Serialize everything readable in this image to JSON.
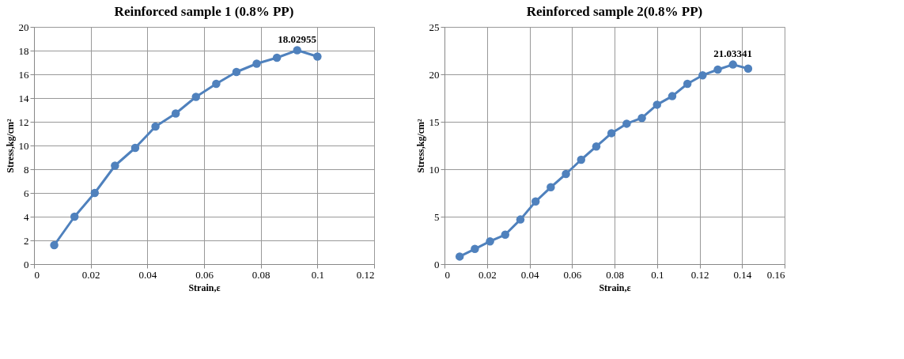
{
  "chart_data": [
    {
      "type": "line",
      "title": "Reinforced sample 1 (0.8% PP)",
      "xlabel": "Strain,ε",
      "ylabel": "Stress,kg/cm²",
      "x": [
        0.00714,
        0.01429,
        0.02143,
        0.02857,
        0.03571,
        0.04286,
        0.05,
        0.05714,
        0.06429,
        0.07143,
        0.07857,
        0.08571,
        0.09286,
        0.1
      ],
      "series": [
        {
          "color": "#4f81bd",
          "values": [
            1.6,
            4.0,
            6.0,
            8.3,
            9.8,
            11.6,
            12.7,
            14.1,
            15.2,
            16.2,
            16.9,
            17.4,
            18.02955,
            17.5
          ]
        }
      ],
      "xlim": [
        0,
        0.12
      ],
      "xticks": [
        0,
        0.02,
        0.04,
        0.06,
        0.08,
        0.1,
        0.12
      ],
      "ylim": [
        0,
        20
      ],
      "yticks": [
        0,
        2,
        4,
        6,
        8,
        10,
        12,
        14,
        16,
        18,
        20
      ],
      "annotations": [
        {
          "text": "18.02955",
          "x": 0.09286,
          "y": 18.02955
        }
      ],
      "grid": true,
      "marker": "circle",
      "line_style": "solid"
    },
    {
      "type": "line",
      "title": "Reinforced sample 2(0.8% PP)",
      "xlabel": "Strain,ε",
      "ylabel": "Stress,kg/cm²",
      "x": [
        0.00714,
        0.01429,
        0.02143,
        0.02857,
        0.03571,
        0.04286,
        0.05,
        0.05714,
        0.06429,
        0.07143,
        0.07857,
        0.08571,
        0.09286,
        0.1,
        0.10714,
        0.11429,
        0.12143,
        0.12857,
        0.13571,
        0.14286
      ],
      "series": [
        {
          "color": "#4f81bd",
          "values": [
            0.8,
            1.6,
            2.4,
            3.1,
            4.7,
            6.6,
            8.1,
            9.5,
            11.0,
            12.4,
            13.8,
            14.8,
            15.4,
            16.8,
            17.7,
            19.0,
            19.9,
            20.5,
            21.03341,
            20.6
          ]
        }
      ],
      "xlim": [
        0,
        0.16
      ],
      "xticks": [
        0,
        0.02,
        0.04,
        0.06,
        0.08,
        0.1,
        0.12,
        0.14,
        0.16
      ],
      "ylim": [
        0,
        25
      ],
      "yticks": [
        0,
        5,
        10,
        15,
        20,
        25
      ],
      "annotations": [
        {
          "text": "21.03341",
          "x": 0.13571,
          "y": 21.03341
        }
      ],
      "grid": true,
      "marker": "circle",
      "line_style": "solid"
    }
  ]
}
